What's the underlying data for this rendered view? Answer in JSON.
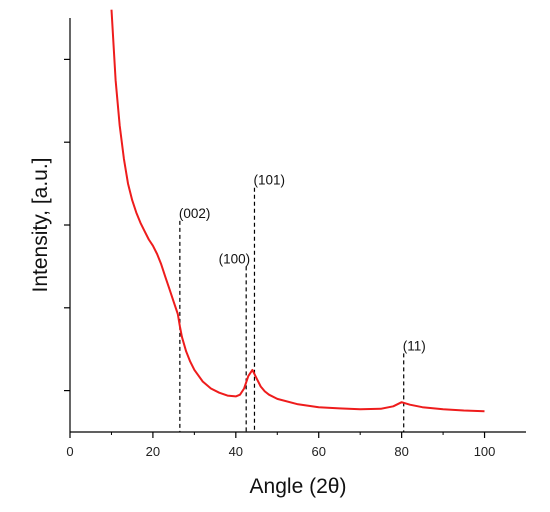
{
  "chart_data": {
    "type": "line",
    "title": "",
    "xlabel": "Angle (2θ)",
    "ylabel": "Intensity, [a.u.]",
    "xlim": [
      0,
      110
    ],
    "ylim": [
      0,
      10
    ],
    "x_ticks": [
      0,
      20,
      40,
      60,
      80,
      100
    ],
    "x_tick_labels": [
      "0",
      "20",
      "40",
      "60",
      "80",
      "100"
    ],
    "y_ticks": [
      1,
      3,
      5,
      7,
      9
    ],
    "y_tick_labels_visible": false,
    "grid": false,
    "legend": "none",
    "series": [
      {
        "color": "#ee1c1c",
        "x": [
          10,
          11,
          12,
          13,
          14,
          15,
          16,
          17,
          18,
          19,
          20,
          21,
          22,
          23,
          24,
          25,
          26,
          26.5,
          27,
          28,
          29,
          30,
          32,
          34,
          36,
          38,
          40,
          41,
          42,
          43,
          44,
          45,
          46,
          47,
          48,
          50,
          55,
          60,
          65,
          70,
          75,
          78,
          80,
          82,
          85,
          90,
          95,
          100
        ],
        "y": [
          10.2,
          8.5,
          7.4,
          6.6,
          6.0,
          5.6,
          5.3,
          5.05,
          4.85,
          4.65,
          4.5,
          4.3,
          4.05,
          3.75,
          3.45,
          3.15,
          2.85,
          2.55,
          2.3,
          1.95,
          1.7,
          1.5,
          1.22,
          1.05,
          0.95,
          0.88,
          0.86,
          0.9,
          1.05,
          1.35,
          1.5,
          1.3,
          1.1,
          0.98,
          0.9,
          0.8,
          0.67,
          0.6,
          0.57,
          0.55,
          0.56,
          0.62,
          0.72,
          0.66,
          0.6,
          0.55,
          0.52,
          0.5
        ]
      }
    ],
    "annotations": [
      {
        "label": "(002)",
        "x": 26.5,
        "y_top": 5.1
      },
      {
        "label": "(100)",
        "x": 42.5,
        "y_top": 4.0
      },
      {
        "label": "(101)",
        "x": 44.5,
        "y_top": 5.9
      },
      {
        "label": "(11)",
        "x": 80.5,
        "y_top": 1.9
      }
    ]
  }
}
